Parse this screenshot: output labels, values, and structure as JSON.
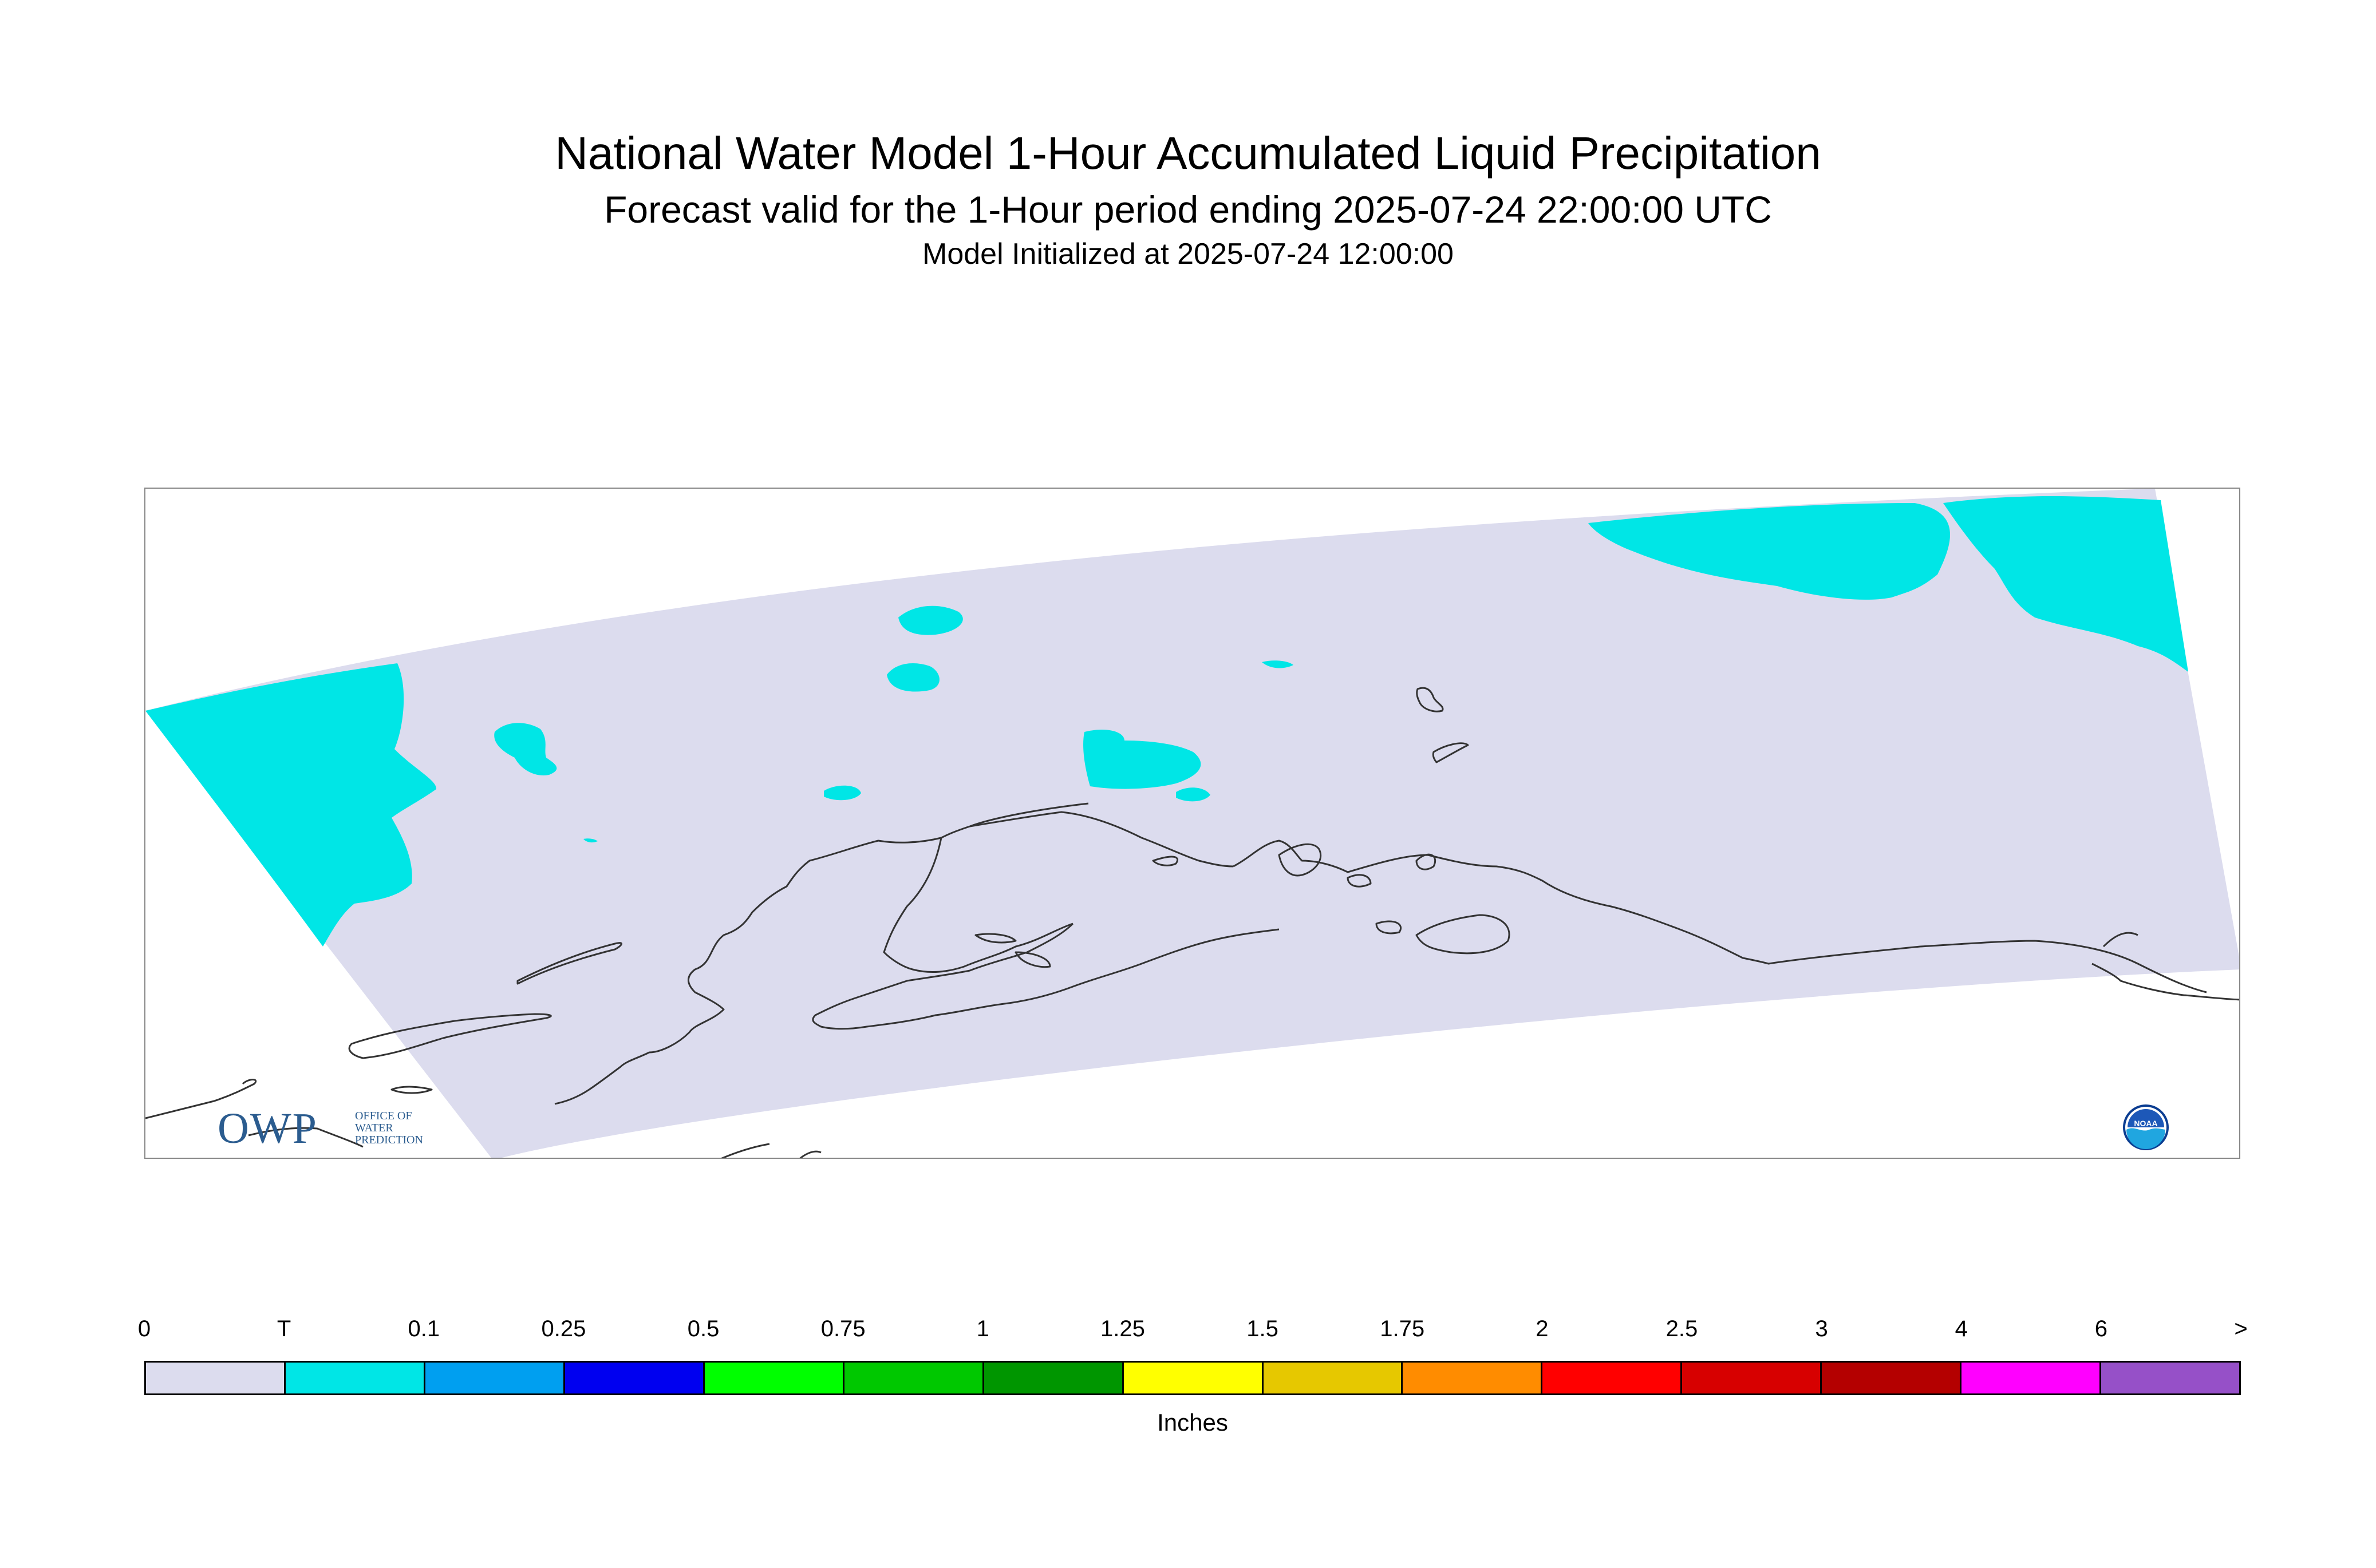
{
  "title": "National Water Model 1-Hour Accumulated Liquid Precipitation",
  "subtitle": "Forecast valid for the 1-Hour period ending 2025-07-24 22:00:00 UTC",
  "init_text": "Model Initialized at 2025-07-24 12:00:00",
  "map": {
    "region": "Alaska",
    "domain_color": "#dcdcee",
    "trace_color": "#00e6e6",
    "coastline_color": "#333333"
  },
  "logos": {
    "owp": {
      "mark": "OWP",
      "lines": [
        "OFFICE OF",
        "WATER",
        "PREDICTION"
      ]
    },
    "noaa": {
      "text": "NOAA"
    }
  },
  "legend": {
    "units": "Inches",
    "ticks": [
      "0",
      "T",
      "0.1",
      "0.25",
      "0.5",
      "0.75",
      "1",
      "1.25",
      "1.5",
      "1.75",
      "2",
      "2.5",
      "3",
      "4",
      "6",
      ">"
    ],
    "colors": [
      "#dcdcee",
      "#00e6e6",
      "#009ff0",
      "#0000f0",
      "#00ff00",
      "#00c800",
      "#009600",
      "#ffff00",
      "#e6c800",
      "#ff8c00",
      "#ff0000",
      "#d70000",
      "#b40000",
      "#ff00ff",
      "#9650c8"
    ]
  }
}
